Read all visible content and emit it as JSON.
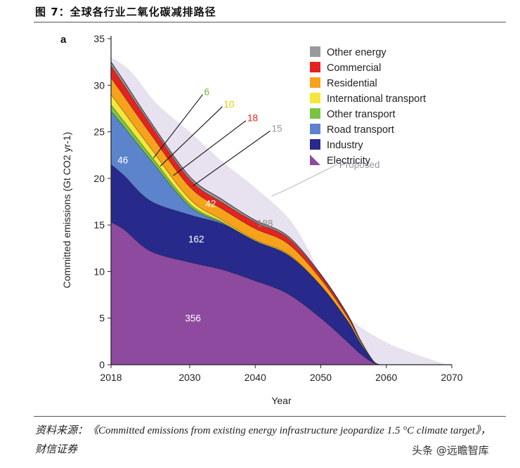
{
  "header": {
    "title": "图 7：全球各行业二氧化碳减排路径"
  },
  "footer": {
    "source": "资料来源：《Committed emissions from existing energy infrastructure jeopardize 1.5 °C climate target》，财信证券",
    "watermark": "头条 @远瞻智库"
  },
  "chart_data": {
    "type": "area",
    "panel_label": "a",
    "xlabel": "Year",
    "ylabel": "Committed emissions (Gt CO2 yr-1)",
    "xlim": [
      2018,
      2070
    ],
    "ylim": [
      0,
      35
    ],
    "x_ticks": [
      2018,
      2030,
      2040,
      2050,
      2060,
      2070
    ],
    "y_ticks": [
      0,
      5,
      10,
      15,
      20,
      25,
      30,
      35
    ],
    "grid": false,
    "legend_position": "top-right",
    "stacked": true,
    "x": [
      2018,
      2020,
      2024,
      2030,
      2035,
      2040,
      2045,
      2050,
      2054,
      2056,
      2058,
      2059
    ],
    "series": [
      {
        "name": "Electricity",
        "color": "#8e4a9e",
        "values": [
          15.3,
          14.5,
          12.2,
          11.0,
          10.2,
          9.0,
          7.6,
          5.0,
          2.5,
          1.2,
          0.2,
          0
        ]
      },
      {
        "name": "Industry",
        "color": "#272a8a",
        "values": [
          6.2,
          5.8,
          5.4,
          5.1,
          4.9,
          4.3,
          4.2,
          3.5,
          2.3,
          1.2,
          0.2,
          0
        ]
      },
      {
        "name": "Road transport",
        "color": "#5b84cc",
        "values": [
          5.7,
          5.2,
          4.4,
          0.9,
          0.1,
          0.0,
          0.0,
          0.0,
          0.0,
          0.0,
          0.0,
          0
        ]
      },
      {
        "name": "Other transport",
        "color": "#78c341",
        "values": [
          0.7,
          0.6,
          0.5,
          0.3,
          0.1,
          0.0,
          0.0,
          0.0,
          0.0,
          0.0,
          0.0,
          0
        ]
      },
      {
        "name": "International transport",
        "color": "#f5e63c",
        "values": [
          1.1,
          1.0,
          0.8,
          0.5,
          0.2,
          0.1,
          0.1,
          0.0,
          0.0,
          0.0,
          0.0,
          0
        ]
      },
      {
        "name": "Residential",
        "color": "#f7a21b",
        "values": [
          1.8,
          1.7,
          1.5,
          1.3,
          1.2,
          1.2,
          1.1,
          0.7,
          0.4,
          0.2,
          0.0,
          0
        ]
      },
      {
        "name": "Commercial",
        "color": "#e5231e",
        "values": [
          1.3,
          1.2,
          1.0,
          0.8,
          0.7,
          0.7,
          0.6,
          0.4,
          0.2,
          0.1,
          0.0,
          0
        ]
      },
      {
        "name": "Other energy",
        "color": "#9a9a9a",
        "values": [
          0.4,
          0.4,
          0.3,
          0.3,
          0.3,
          0.2,
          0.2,
          0.1,
          0.1,
          0.0,
          0.0,
          0
        ]
      }
    ],
    "proposed": {
      "name": "Proposed",
      "label": "Proposed",
      "color": "#e8e1ef",
      "x": [
        2018,
        2021,
        2025,
        2030,
        2035,
        2040,
        2045,
        2048,
        2050,
        2052,
        2055,
        2060,
        2065,
        2069
      ],
      "values": [
        33.0,
        31.5,
        28.0,
        25.0,
        21.8,
        19.0,
        15.8,
        12.5,
        9.5,
        7.0,
        4.6,
        2.4,
        1.0,
        0.05
      ]
    },
    "legend": [
      {
        "name": "Other energy",
        "color": "#9a9a9a"
      },
      {
        "name": "Commercial",
        "color": "#e5231e"
      },
      {
        "name": "Residential",
        "color": "#f7a21b"
      },
      {
        "name": "International transport",
        "color": "#f5e63c"
      },
      {
        "name": "Other transport",
        "color": "#78c341"
      },
      {
        "name": "Road transport",
        "color": "#5b84cc"
      },
      {
        "name": "Industry",
        "color": "#272a8a"
      },
      {
        "name": "Electricity",
        "color": "#8e4a9e"
      }
    ],
    "annotations": [
      {
        "text": "356",
        "series": "Electricity",
        "x": 2030.5,
        "y": 5.0,
        "color": "#ffffff"
      },
      {
        "text": "162",
        "series": "Industry",
        "x": 2031,
        "y": 13.5,
        "color": "#ffffff"
      },
      {
        "text": "46",
        "series": "Road transport",
        "x": 2019.8,
        "y": 22.0,
        "color": "#ffffff"
      },
      {
        "text": "42",
        "series": "Residential",
        "x": 2033.2,
        "y": 17.3,
        "color": "#ffffff"
      },
      {
        "text": "188",
        "series": "Proposed",
        "x": 2041.5,
        "y": 15.2,
        "color": "#888888"
      },
      {
        "text": "6",
        "series": "Other transport",
        "x": 2032.2,
        "y": 29.3,
        "color": "#6cb83a",
        "line_to": [
          2024.5,
          22.2
        ]
      },
      {
        "text": "10",
        "series": "International transport",
        "x": 2035.2,
        "y": 28.0,
        "color": "#e8c800",
        "line_to": [
          2025.5,
          21.3
        ]
      },
      {
        "text": "18",
        "series": "Commercial",
        "x": 2038.8,
        "y": 26.5,
        "color": "#e5231e",
        "line_to": [
          2027.5,
          20.3
        ]
      },
      {
        "text": "15",
        "series": "Other energy",
        "x": 2042.5,
        "y": 25.4,
        "color": "#999999",
        "line_to": [
          2030.5,
          19.2
        ]
      }
    ],
    "proposed_pointer": [
      2042.5,
      18.1,
      2044.5,
      18.7,
      2052.5,
      21.5
    ]
  }
}
